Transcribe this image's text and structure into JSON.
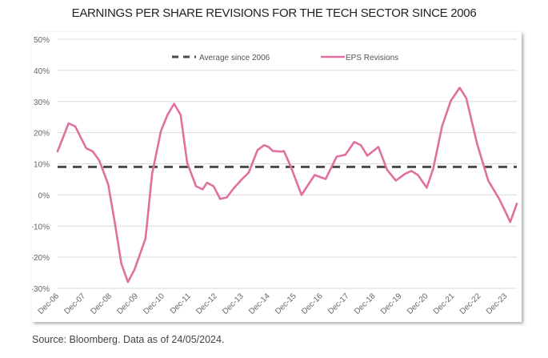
{
  "chart_data": {
    "type": "line",
    "title": "EARNINGS PER SHARE REVISIONS FOR THE TECH SECTOR SINCE 2006",
    "xlabel": "",
    "ylabel": "",
    "ylim": [
      -30,
      50
    ],
    "yticks": [
      "50%",
      "40%",
      "30%",
      "20%",
      "10%",
      "0%",
      "-10%",
      "-20%",
      "-30%"
    ],
    "ytick_values": [
      50,
      40,
      30,
      20,
      10,
      0,
      -10,
      -20,
      -30
    ],
    "xticks": [
      "Dec-06",
      "Dec-07",
      "Dec-08",
      "Dec-09",
      "Dec-10",
      "Dec-11",
      "Dec-12",
      "Dec-13",
      "Dec-14",
      "Dec-15",
      "Dec-16",
      "Dec-17",
      "Dec-18",
      "Dec-19",
      "Dec-20",
      "Dec-21",
      "Dec-22",
      "Dec-23"
    ],
    "xtick_dates": [
      "2006-12",
      "2007-12",
      "2008-12",
      "2009-12",
      "2010-12",
      "2011-12",
      "2012-12",
      "2013-12",
      "2014-12",
      "2015-12",
      "2016-12",
      "2017-12",
      "2018-12",
      "2019-12",
      "2020-12",
      "2021-12",
      "2022-12",
      "2023-12"
    ],
    "xlim": [
      "2006-12",
      "2024-05"
    ],
    "grid": true,
    "legend_placement": "top",
    "series": [
      {
        "name": "Average since 2006",
        "style": "dashed",
        "color": "#4a4a4a",
        "x": [
          "2006-12",
          "2024-05"
        ],
        "values": [
          9,
          9
        ]
      },
      {
        "name": "EPS Revisions",
        "style": "solid",
        "color": "#e0709f",
        "x": [
          "2006-12",
          "2007-05",
          "2007-08",
          "2008-01",
          "2008-04",
          "2008-07",
          "2008-11",
          "2009-02",
          "2009-05",
          "2009-08",
          "2009-11",
          "2010-04",
          "2010-07",
          "2010-11",
          "2011-02",
          "2011-05",
          "2011-08",
          "2011-11",
          "2012-03",
          "2012-06",
          "2012-08",
          "2012-11",
          "2013-02",
          "2013-05",
          "2013-08",
          "2013-12",
          "2014-03",
          "2014-07",
          "2014-10",
          "2014-12",
          "2015-02",
          "2015-06",
          "2015-07",
          "2015-10",
          "2016-03",
          "2016-09",
          "2017-02",
          "2017-07",
          "2017-11",
          "2018-03",
          "2018-06",
          "2018-09",
          "2019-02",
          "2019-06",
          "2019-10",
          "2020-02",
          "2020-05",
          "2020-08",
          "2020-12",
          "2021-03",
          "2021-07",
          "2021-11",
          "2022-03",
          "2022-06",
          "2022-11",
          "2023-04",
          "2023-09",
          "2023-12",
          "2024-02",
          "2024-05"
        ],
        "values": [
          14,
          23,
          22,
          15,
          14,
          11,
          3.4,
          -8.7,
          -22,
          -28,
          -24,
          -14,
          6.7,
          20.5,
          25.7,
          29.3,
          25.7,
          10.3,
          2.8,
          1.8,
          3.9,
          2.8,
          -1.3,
          -0.8,
          2,
          5.1,
          7.2,
          14.4,
          16,
          15.4,
          14.1,
          13.9,
          14.1,
          9.3,
          0,
          6.4,
          5.1,
          12.3,
          12.9,
          17,
          16,
          12.6,
          15.4,
          8,
          4.6,
          6.7,
          7.7,
          6.4,
          2.3,
          8.5,
          22.1,
          30.3,
          34.4,
          31.1,
          16.2,
          4.6,
          -1.3,
          -5.7,
          -8.7,
          -2.8
        ]
      }
    ]
  },
  "source": "Source: Bloomberg. Data as of 24/05/2024."
}
